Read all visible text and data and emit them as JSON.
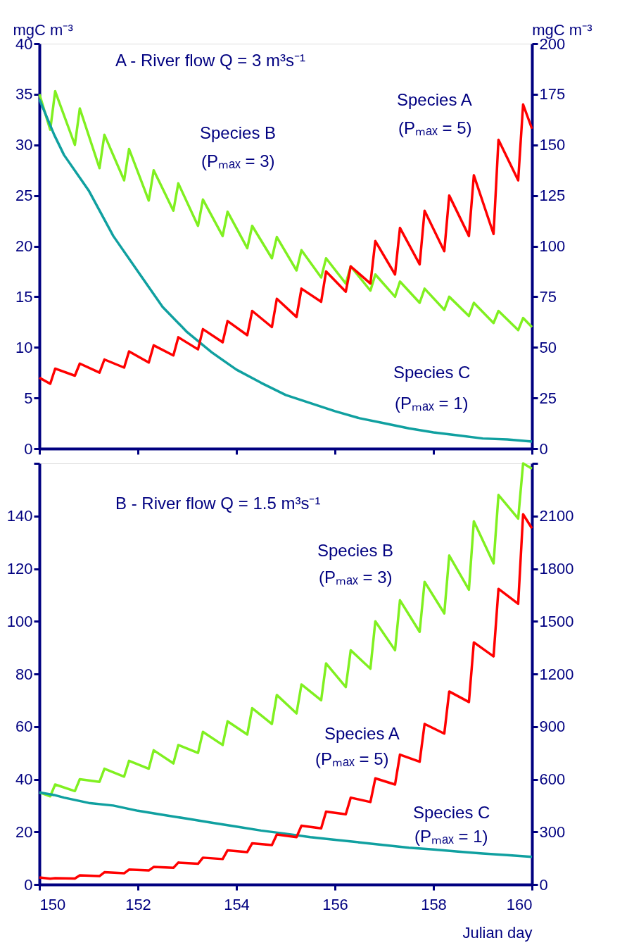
{
  "chart_data": [
    {
      "type": "line",
      "title": "A - River flow Q = 3 m³s⁻¹",
      "ylabel": "mgC m⁻³",
      "y2label": "mgC m⁻³",
      "tick_labels": "y",
      "xlim": [
        150,
        160
      ],
      "xticks": [
        150,
        152,
        154,
        156,
        158,
        160
      ],
      "ylim": [
        0,
        40
      ],
      "yticks": [
        0,
        5,
        10,
        15,
        20,
        25,
        30,
        35,
        40
      ],
      "y2lim": [
        0,
        200
      ],
      "y2ticks": [
        0,
        25,
        50,
        75,
        100,
        125,
        150,
        175,
        200
      ],
      "series": [
        {
          "name": "Species B",
          "color": "#80f020",
          "x": [
            150,
            150.22,
            150.32,
            150.72,
            150.82,
            151.22,
            151.32,
            151.72,
            151.82,
            152.22,
            152.32,
            152.72,
            152.82,
            153.22,
            153.32,
            153.72,
            153.82,
            154.22,
            154.32,
            154.72,
            154.82,
            155.22,
            155.32,
            155.72,
            155.82,
            156.22,
            156.32,
            156.72,
            156.82,
            157.22,
            157.32,
            157.72,
            157.82,
            158.22,
            158.32,
            158.72,
            158.82,
            159.22,
            159.32,
            159.72,
            159.82,
            160
          ],
          "values": [
            35,
            31.5,
            35.3,
            30.0,
            33.6,
            27.7,
            31.0,
            26.5,
            29.6,
            24.5,
            27.5,
            23.5,
            26.2,
            22.0,
            24.6,
            21.0,
            23.4,
            19.8,
            22.0,
            18.8,
            20.9,
            17.6,
            19.6,
            16.9,
            18.8,
            16.3,
            18.0,
            15.6,
            17.2,
            15.0,
            16.5,
            14.4,
            15.8,
            13.7,
            15.0,
            13.1,
            14.4,
            12.4,
            13.6,
            11.7,
            12.9,
            12.0
          ]
        },
        {
          "name": "Species C",
          "color": "#10a0a0",
          "x": [
            150,
            150.3,
            150.5,
            151,
            151.5,
            152,
            152.5,
            153,
            153.5,
            154,
            154.5,
            155,
            155.5,
            156,
            156.5,
            157,
            157.5,
            158,
            158.5,
            159,
            159.5,
            160
          ],
          "values": [
            34.5,
            31,
            29,
            25.5,
            21,
            17.5,
            14,
            11.5,
            9.5,
            7.8,
            6.5,
            5.3,
            4.5,
            3.7,
            3.0,
            2.5,
            2.0,
            1.6,
            1.3,
            1.0,
            0.9,
            0.7
          ]
        },
        {
          "name": "Species A",
          "color": "#ff0000",
          "axis": "y2",
          "x": [
            150,
            150.22,
            150.32,
            150.72,
            150.82,
            151.22,
            151.32,
            151.72,
            151.82,
            152.22,
            152.32,
            152.72,
            152.82,
            153.22,
            153.32,
            153.72,
            153.82,
            154.22,
            154.32,
            154.72,
            154.82,
            155.22,
            155.32,
            155.72,
            155.82,
            156.22,
            156.32,
            156.72,
            156.82,
            157.22,
            157.32,
            157.72,
            157.82,
            158.22,
            158.32,
            158.72,
            158.82,
            159.22,
            159.32,
            159.72,
            159.82,
            160
          ],
          "values": [
            35,
            32,
            39.5,
            36,
            42,
            37.5,
            44,
            40,
            48,
            42.5,
            51,
            46,
            55,
            49,
            59,
            52.5,
            63,
            56,
            68,
            60,
            74,
            65,
            79,
            72.5,
            87.5,
            77.5,
            90,
            81.5,
            102.5,
            86,
            109,
            91,
            117.5,
            97.5,
            125,
            105,
            135,
            106,
            152.5,
            132.5,
            170,
            158
          ]
        }
      ],
      "annotations": [
        "(Pₘₐₓ = 3)",
        "(Pₘₐₓ = 1)",
        "(Pₘₐₓ = 5)"
      ]
    },
    {
      "type": "line",
      "title": "B - River flow Q = 1.5 m³s⁻¹",
      "xlabel": "Julian day",
      "xlim": [
        150,
        160
      ],
      "xticks": [
        150,
        152,
        154,
        156,
        158,
        160
      ],
      "ylim": [
        0,
        160
      ],
      "yticks": [
        0,
        20,
        40,
        60,
        80,
        100,
        120,
        140,
        {
          "value": 160,
          "label": null
        }
      ],
      "y2lim": [
        0,
        2400
      ],
      "y2ticks": [
        0,
        300,
        600,
        900,
        1200,
        1500,
        1800,
        2100,
        {
          "value": 2400,
          "label": null
        }
      ],
      "series": [
        {
          "name": "Species B",
          "color": "#80f020",
          "x": [
            150,
            150.22,
            150.32,
            150.72,
            150.82,
            151.22,
            151.32,
            151.72,
            151.82,
            152.22,
            152.32,
            152.72,
            152.82,
            153.22,
            153.32,
            153.72,
            153.82,
            154.22,
            154.32,
            154.72,
            154.82,
            155.22,
            155.32,
            155.72,
            155.82,
            156.22,
            156.32,
            156.72,
            156.82,
            157.22,
            157.32,
            157.72,
            157.82,
            158.22,
            158.32,
            158.72,
            158.82,
            159.22,
            159.32,
            159.72,
            159.82,
            160
          ],
          "values": [
            35,
            33.5,
            38,
            35.5,
            40,
            39,
            44,
            41,
            47,
            44,
            51,
            46,
            53,
            50,
            58,
            53,
            62,
            57,
            67,
            61,
            72,
            65,
            76,
            70,
            84,
            75,
            89,
            82,
            100,
            89,
            108,
            96,
            115,
            103,
            125,
            112,
            138,
            122,
            148,
            139,
            160,
            158
          ]
        },
        {
          "name": "Species C",
          "color": "#10a0a0",
          "x": [
            150,
            150.3,
            150.5,
            151,
            151.5,
            152,
            152.5,
            153,
            153.5,
            154,
            154.5,
            155,
            155.5,
            156,
            156.5,
            157,
            157.5,
            158,
            158.5,
            159,
            159.5,
            160
          ],
          "values": [
            35,
            34,
            33,
            31,
            30,
            28,
            26.5,
            25,
            23.5,
            22,
            20.5,
            19.3,
            18,
            17,
            16,
            15,
            14,
            13.3,
            12.5,
            11.8,
            11.2,
            10.5
          ]
        },
        {
          "name": "Species A",
          "color": "#ff0000",
          "axis": "y2",
          "x": [
            150,
            150.22,
            150.32,
            150.72,
            150.82,
            151.22,
            151.32,
            151.72,
            151.82,
            152.22,
            152.32,
            152.72,
            152.82,
            153.22,
            153.32,
            153.72,
            153.82,
            154.22,
            154.32,
            154.72,
            154.82,
            155.22,
            155.32,
            155.72,
            155.82,
            156.22,
            156.32,
            156.72,
            156.82,
            157.22,
            157.32,
            157.72,
            157.82,
            158.22,
            158.32,
            158.72,
            158.82,
            159.22,
            159.32,
            159.72,
            159.82,
            160
          ],
          "values": [
            40,
            33,
            36,
            34,
            52,
            48,
            70,
            64,
            85,
            80,
            100,
            95,
            125,
            118,
            153,
            145,
            195,
            185,
            235,
            225,
            285,
            270,
            335,
            320,
            415,
            400,
            495,
            470,
            605,
            570,
            740,
            700,
            915,
            860,
            1100,
            1040,
            1380,
            1300,
            1685,
            1600,
            2110,
            2030
          ]
        }
      ],
      "annotations": [
        "(Pₘₐₓ = 3)",
        "(Pₘₐₓ = 1)",
        "(Pₘₐₓ = 5)"
      ]
    }
  ]
}
